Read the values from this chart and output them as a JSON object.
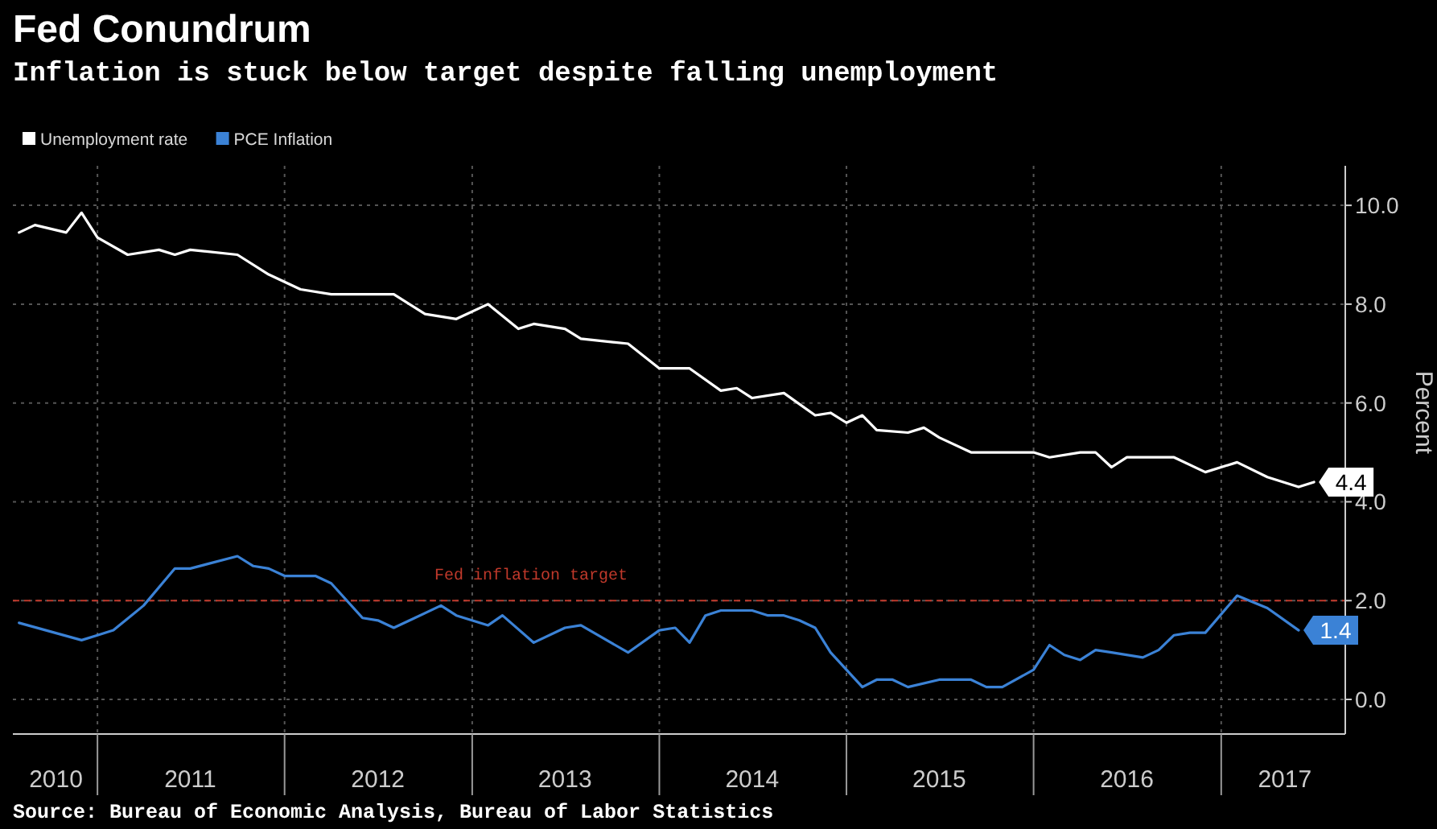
{
  "chart_data": {
    "type": "line",
    "title": "Fed Conundrum",
    "subtitle": "Inflation is stuck below target despite falling unemployment",
    "ylabel": "Percent",
    "annotations": [
      "Source: Bureau of Economic Analysis, Bureau of Labor Statistics"
    ],
    "xlim": [
      "2010-07-20",
      "2017-08-31"
    ],
    "xticks": [
      {
        "value": "2010-10-12",
        "label": "2010"
      },
      {
        "value": "2011-01-01",
        "label": null
      },
      {
        "value": "2011-07-01",
        "label": "2011"
      },
      {
        "value": "2012-01-01",
        "label": null
      },
      {
        "value": "2012-07-01",
        "label": "2012"
      },
      {
        "value": "2013-01-01",
        "label": null
      },
      {
        "value": "2013-07-01",
        "label": "2013"
      },
      {
        "value": "2014-01-01",
        "label": null
      },
      {
        "value": "2014-07-01",
        "label": "2014"
      },
      {
        "value": "2015-01-01",
        "label": null
      },
      {
        "value": "2015-07-01",
        "label": "2015"
      },
      {
        "value": "2016-01-01",
        "label": null
      },
      {
        "value": "2016-07-01",
        "label": "2016"
      },
      {
        "value": "2017-01-01",
        "label": null
      },
      {
        "value": "2017-05-05",
        "label": "2017"
      }
    ],
    "ylim": [
      -0.7,
      10.8
    ],
    "yticks": [
      {
        "value": 0,
        "label": "0.0"
      },
      {
        "value": 2,
        "label": "2.0"
      },
      {
        "value": 4,
        "label": "4.0"
      },
      {
        "value": 6,
        "label": "6.0"
      },
      {
        "value": 8,
        "label": "8.0"
      },
      {
        "value": 10,
        "label": "10.0"
      }
    ],
    "grid": true,
    "legend": "top left",
    "marker": "none",
    "line_style": "solid",
    "ref_lines": [
      {
        "axis": "y",
        "value": 2,
        "label": "Fed inflation target",
        "color": "#c0392b",
        "line_style": "dashed"
      }
    ],
    "series": [
      {
        "name": "Unemployment rate",
        "color": "#ffffff",
        "x": [
          "2010-08",
          "2010-09",
          "2010-11",
          "2010-12",
          "2011-01",
          "2011-03",
          "2011-05",
          "2011-06",
          "2011-07",
          "2011-10",
          "2011-12",
          "2012-02",
          "2012-04",
          "2012-08",
          "2012-10",
          "2012-12",
          "2013-02",
          "2013-04",
          "2013-05",
          "2013-07",
          "2013-08",
          "2013-11",
          "2014-01",
          "2014-03",
          "2014-05",
          "2014-06",
          "2014-07",
          "2014-09",
          "2014-11",
          "2014-12",
          "2015-01",
          "2015-02",
          "2015-03",
          "2015-05",
          "2015-06",
          "2015-07",
          "2015-09",
          "2016-01",
          "2016-02",
          "2016-04",
          "2016-05",
          "2016-06",
          "2016-07",
          "2016-10",
          "2016-12",
          "2017-02",
          "2017-04",
          "2017-06",
          "2017-07"
        ],
        "values": [
          9.45,
          9.6,
          9.45,
          9.85,
          9.35,
          9.0,
          9.1,
          9.0,
          9.1,
          9.0,
          8.6,
          8.3,
          8.2,
          8.2,
          7.8,
          7.7,
          8.0,
          7.5,
          7.6,
          7.5,
          7.3,
          7.2,
          6.7,
          6.7,
          6.25,
          6.3,
          6.1,
          6.2,
          5.75,
          5.8,
          5.6,
          5.75,
          5.45,
          5.4,
          5.5,
          5.3,
          5.0,
          5.0,
          4.9,
          5.0,
          5.0,
          4.7,
          4.9,
          4.9,
          4.6,
          4.8,
          4.5,
          4.3,
          4.4
        ],
        "value_labels": [
          null,
          null,
          null,
          null,
          null,
          null,
          null,
          null,
          null,
          null,
          null,
          null,
          null,
          null,
          null,
          null,
          null,
          null,
          null,
          null,
          null,
          null,
          null,
          null,
          null,
          null,
          null,
          null,
          null,
          null,
          null,
          null,
          null,
          null,
          null,
          null,
          null,
          null,
          null,
          null,
          null,
          null,
          null,
          null,
          null,
          null,
          null,
          null,
          "4.4"
        ]
      },
      {
        "name": "PCE Inflation",
        "color": "#3b82d6",
        "x": [
          "2010-08",
          "2010-12",
          "2011-01",
          "2011-02",
          "2011-04",
          "2011-06",
          "2011-07",
          "2011-10",
          "2011-11",
          "2011-12",
          "2012-01",
          "2012-03",
          "2012-04",
          "2012-06",
          "2012-07",
          "2012-08",
          "2012-09",
          "2012-11",
          "2012-12",
          "2013-02",
          "2013-03",
          "2013-05",
          "2013-07",
          "2013-08",
          "2013-11",
          "2014-01",
          "2014-02",
          "2014-03",
          "2014-04",
          "2014-05",
          "2014-07",
          "2014-08",
          "2014-09",
          "2014-10",
          "2014-11",
          "2014-12",
          "2015-02",
          "2015-03",
          "2015-04",
          "2015-05",
          "2015-07",
          "2015-09",
          "2015-10",
          "2015-11",
          "2016-01",
          "2016-02",
          "2016-03",
          "2016-04",
          "2016-05",
          "2016-06",
          "2016-08",
          "2016-09",
          "2016-10",
          "2016-11",
          "2016-12",
          "2017-02",
          "2017-04",
          "2017-06"
        ],
        "values": [
          1.55,
          1.2,
          1.3,
          1.4,
          1.9,
          2.65,
          2.65,
          2.9,
          2.7,
          2.65,
          2.5,
          2.5,
          2.35,
          1.65,
          1.6,
          1.45,
          1.6,
          1.9,
          1.7,
          1.5,
          1.7,
          1.15,
          1.45,
          1.5,
          0.95,
          1.4,
          1.45,
          1.15,
          1.7,
          1.8,
          1.8,
          1.7,
          1.7,
          1.6,
          1.45,
          0.95,
          0.25,
          0.4,
          0.4,
          0.25,
          0.4,
          0.4,
          0.25,
          0.25,
          0.6,
          1.1,
          0.9,
          0.8,
          1.0,
          0.95,
          0.85,
          1.0,
          1.3,
          1.35,
          1.35,
          2.1,
          1.85,
          1.4
        ],
        "value_labels": [
          null,
          null,
          null,
          null,
          null,
          null,
          null,
          null,
          null,
          null,
          null,
          null,
          null,
          null,
          null,
          null,
          null,
          null,
          null,
          null,
          null,
          null,
          null,
          null,
          null,
          null,
          null,
          null,
          null,
          null,
          null,
          null,
          null,
          null,
          null,
          null,
          null,
          null,
          null,
          null,
          null,
          null,
          null,
          null,
          null,
          null,
          null,
          null,
          null,
          null,
          null,
          null,
          null,
          null,
          null,
          null,
          null,
          "1.4"
        ]
      }
    ]
  }
}
